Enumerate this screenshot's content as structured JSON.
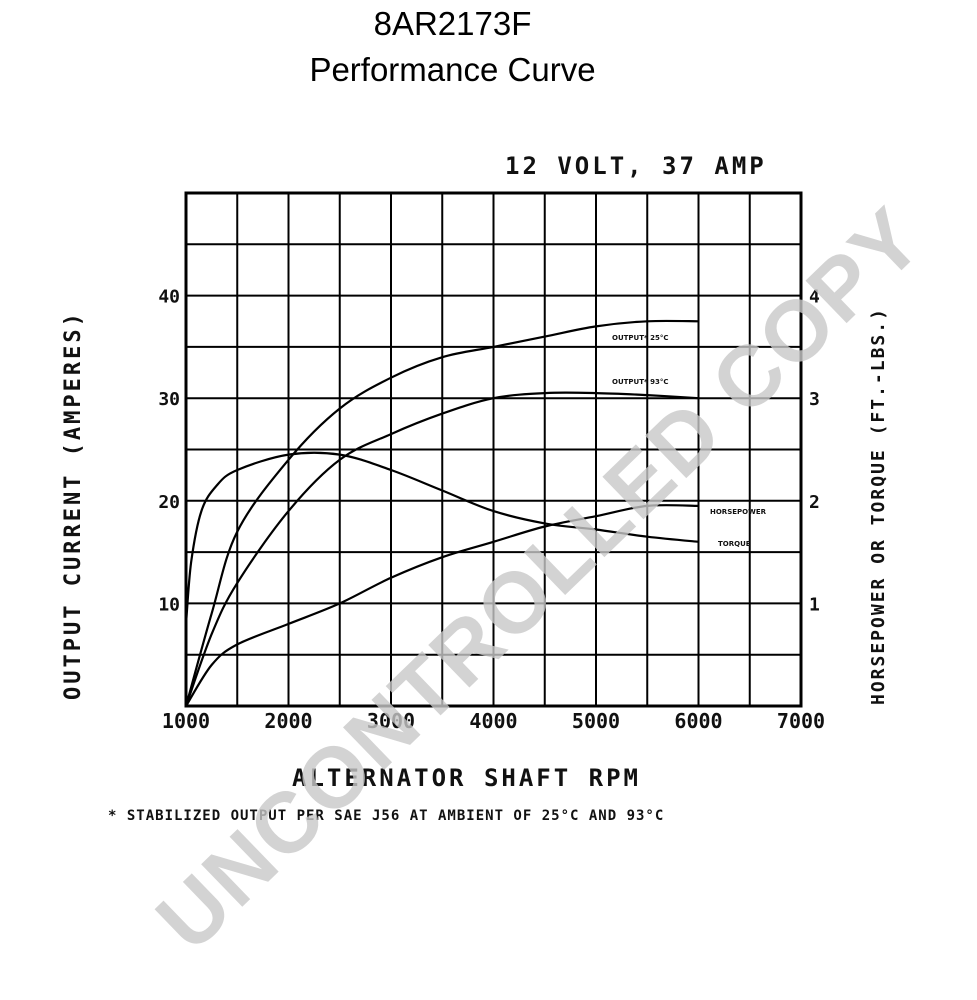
{
  "title_line1": "8AR2173F",
  "title_line2": "Performance Curve",
  "chart_data": {
    "type": "line",
    "subtitle": "12 VOLT, 37 AMP",
    "xlabel": "ALTERNATOR SHAFT RPM",
    "ylabel_left": "OUTPUT CURRENT (AMPERES)",
    "ylabel_right": "HORSEPOWER OR TORQUE (FT.-LBS.)",
    "footnote": "* STABILIZED OUTPUT PER SAE J56 AT AMBIENT OF 25°C AND 93°C",
    "watermark": "UNCONTROLLED COPY",
    "xlim": [
      1000,
      7000
    ],
    "ylim_left": [
      0,
      50
    ],
    "ylim_right": [
      0,
      5
    ],
    "grid": true,
    "x_ticks": [
      "1000",
      "2000",
      "3000",
      "4000",
      "5000",
      "6000",
      "7000"
    ],
    "y_ticks_left": [
      "10",
      "20",
      "30",
      "40"
    ],
    "y_ticks_right": [
      "1",
      "2",
      "3",
      "4"
    ],
    "series": [
      {
        "name": "OUTPUT* 25°C",
        "axis": "left",
        "x": [
          1000,
          1250,
          1500,
          2000,
          2500,
          3000,
          3500,
          4000,
          4500,
          5000,
          5500,
          6000
        ],
        "y": [
          0,
          9,
          17,
          24,
          29,
          32,
          34,
          35,
          36,
          37,
          37.5,
          37.5
        ]
      },
      {
        "name": "OUTPUT* 93°C",
        "axis": "left",
        "x": [
          1000,
          1250,
          1500,
          2000,
          2500,
          3000,
          3500,
          4000,
          4500,
          5000,
          5500,
          6000
        ],
        "y": [
          0,
          7,
          12,
          19,
          24,
          26.5,
          28.5,
          30,
          30.5,
          30.5,
          30.3,
          30
        ]
      },
      {
        "name": "HORSEPOWER",
        "axis": "right",
        "x": [
          1000,
          1250,
          1500,
          2000,
          2500,
          3000,
          3500,
          4000,
          4500,
          5000,
          5500,
          6000
        ],
        "y": [
          0,
          0.4,
          0.6,
          0.8,
          1.0,
          1.25,
          1.45,
          1.6,
          1.75,
          1.85,
          1.95,
          1.95
        ]
      },
      {
        "name": "TORQUE",
        "axis": "right",
        "x": [
          1000,
          1050,
          1150,
          1300,
          1500,
          2000,
          2500,
          3000,
          3500,
          4000,
          4500,
          5000,
          5500,
          6000
        ],
        "y": [
          0.8,
          1.4,
          1.9,
          2.15,
          2.3,
          2.45,
          2.45,
          2.3,
          2.1,
          1.9,
          1.78,
          1.72,
          1.65,
          1.6
        ]
      }
    ]
  }
}
